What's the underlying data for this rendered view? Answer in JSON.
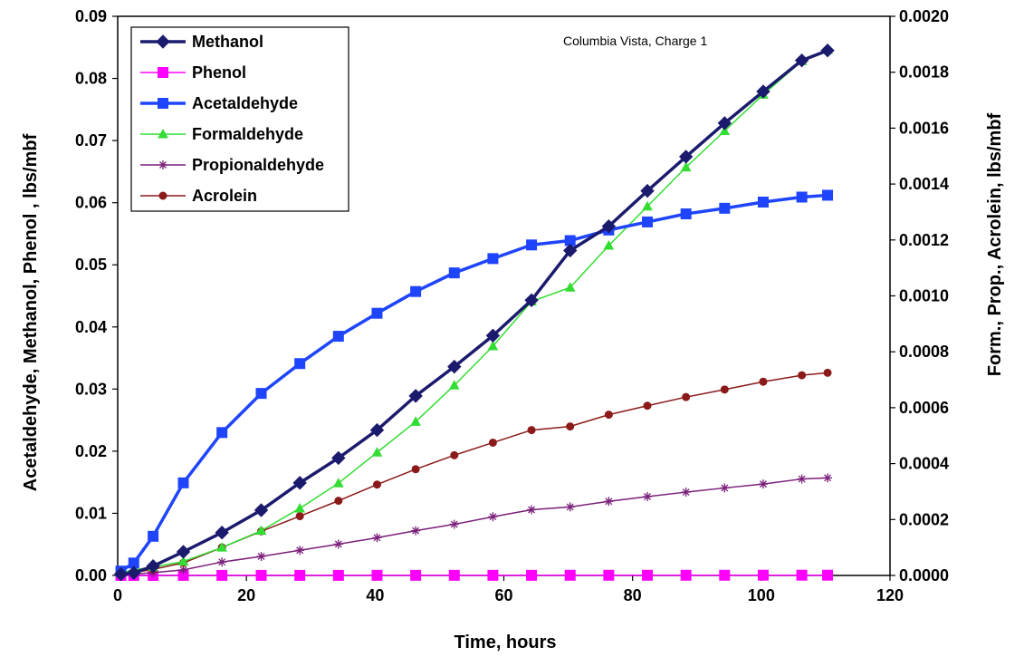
{
  "chart_data": {
    "type": "line",
    "title": "",
    "annotation": "Columbia Vista,  Charge 1",
    "xlabel": "Time, hours",
    "ylabel_left": "Acetaldehyde, Methanol, Phenol , lbs/mbf",
    "ylabel_right": "Form., Prop., Acrolein, lbs/mbf",
    "xlim": [
      0,
      120
    ],
    "ylim_left": [
      0,
      0.09
    ],
    "ylim_right": [
      0,
      0.002
    ],
    "x_ticks": [
      "0",
      "20",
      "40",
      "60",
      "80",
      "100",
      "120"
    ],
    "y_left_ticks": [
      "0.00",
      "0.01",
      "0.02",
      "0.03",
      "0.04",
      "0.05",
      "0.06",
      "0.07",
      "0.08",
      "0.09"
    ],
    "y_right_ticks": [
      "0.0000",
      "0.0002",
      "0.0004",
      "0.0006",
      "0.0008",
      "0.0010",
      "0.0012",
      "0.0014",
      "0.0016",
      "0.0018",
      "0.0020"
    ],
    "grid": false,
    "legend_position": "top-left",
    "series": [
      {
        "name": "Methanol",
        "axis": "left",
        "color": "#1b1b6e",
        "marker": "diamond",
        "width": 3.5,
        "x": [
          0.5,
          2.5,
          5.5,
          10.2,
          16.2,
          22.3,
          28.3,
          34.3,
          40.3,
          46.3,
          52.3,
          58.3,
          64.3,
          70.3,
          76.3,
          82.3,
          88.3,
          94.3,
          100.3,
          106.3,
          110.3
        ],
        "y": [
          0.0002,
          0.0004,
          0.0015,
          0.0038,
          0.0069,
          0.0105,
          0.0149,
          0.0189,
          0.0234,
          0.0289,
          0.0336,
          0.0386,
          0.0443,
          0.0523,
          0.0562,
          0.0619,
          0.0674,
          0.0728,
          0.0779,
          0.0829,
          0.0845
        ]
      },
      {
        "name": "Phenol",
        "axis": "left",
        "color": "#ff00ff",
        "marker": "square",
        "width": 1.5,
        "x": [
          0.5,
          2.5,
          5.5,
          10.2,
          16.2,
          22.3,
          28.3,
          34.3,
          40.3,
          46.3,
          52.3,
          58.3,
          64.3,
          70.3,
          76.3,
          82.3,
          88.3,
          94.3,
          100.3,
          106.3,
          110.3
        ],
        "y": [
          0,
          0,
          0,
          1e-05,
          1e-05,
          1e-05,
          1e-05,
          1e-05,
          2e-05,
          2e-05,
          2e-05,
          2e-05,
          2e-05,
          3e-05,
          3e-05,
          3e-05,
          3e-05,
          3e-05,
          4e-05,
          4e-05,
          4e-05
        ]
      },
      {
        "name": "Acetaldehyde",
        "axis": "left",
        "color": "#1f45fc",
        "marker": "square",
        "width": 3.5,
        "x": [
          0.5,
          2.5,
          5.5,
          10.2,
          16.2,
          22.3,
          28.3,
          34.3,
          40.3,
          46.3,
          52.3,
          58.3,
          64.3,
          70.3,
          76.3,
          82.3,
          88.3,
          94.3,
          100.3,
          106.3,
          110.3
        ],
        "y": [
          0.0007,
          0.002,
          0.0063,
          0.0149,
          0.023,
          0.0293,
          0.0341,
          0.0385,
          0.0422,
          0.0457,
          0.0487,
          0.051,
          0.0532,
          0.0539,
          0.0556,
          0.0569,
          0.0582,
          0.0591,
          0.0601,
          0.0609,
          0.0612
        ]
      },
      {
        "name": "Formaldehyde",
        "axis": "right",
        "color": "#33dd33",
        "marker": "triangle",
        "width": 1.5,
        "x": [
          0.5,
          2.5,
          5.5,
          10.2,
          16.2,
          22.3,
          28.3,
          34.3,
          40.3,
          46.3,
          52.3,
          58.3,
          64.3,
          70.3,
          76.3,
          82.3,
          88.3,
          94.3,
          100.3,
          106.3,
          110.3
        ],
        "y": [
          1e-05,
          2e-05,
          3e-05,
          5e-05,
          0.0001,
          0.00016,
          0.00024,
          0.00033,
          0.00044,
          0.00055,
          0.00068,
          0.00082,
          0.00098,
          0.00103,
          0.00118,
          0.00132,
          0.00146,
          0.00159,
          0.00172,
          0.00184,
          0.00188
        ]
      },
      {
        "name": "Propionaldehyde",
        "axis": "right",
        "color": "#7a1f7a",
        "marker": "asterisk",
        "width": 1.5,
        "x": [
          0.5,
          2.5,
          5.5,
          10.2,
          16.2,
          22.3,
          28.3,
          34.3,
          40.3,
          46.3,
          52.3,
          58.3,
          64.3,
          70.3,
          76.3,
          82.3,
          88.3,
          94.3,
          100.3,
          106.3,
          110.3
        ],
        "y": [
          2e-06,
          5e-06,
          1e-05,
          2e-05,
          4.8e-05,
          6.8e-05,
          9e-05,
          0.000112,
          0.000135,
          0.00016,
          0.000183,
          0.00021,
          0.000235,
          0.000245,
          0.000265,
          0.000282,
          0.000298,
          0.000313,
          0.000327,
          0.000345,
          0.000349
        ]
      },
      {
        "name": "Acrolein",
        "axis": "right",
        "color": "#8b1a1a",
        "marker": "circle",
        "width": 1.5,
        "x": [
          0.5,
          2.5,
          5.5,
          10.2,
          16.2,
          22.3,
          28.3,
          34.3,
          40.3,
          46.3,
          52.3,
          58.3,
          64.3,
          70.3,
          76.3,
          82.3,
          88.3,
          94.3,
          100.3,
          106.3,
          110.3
        ],
        "y": [
          3e-06,
          1e-05,
          2.2e-05,
          4.5e-05,
          0.0001,
          0.000158,
          0.000212,
          0.000267,
          0.000325,
          0.00038,
          0.00043,
          0.000475,
          0.00052,
          0.000533,
          0.000575,
          0.000607,
          0.000638,
          0.000665,
          0.000693,
          0.000716,
          0.000725
        ]
      }
    ]
  }
}
